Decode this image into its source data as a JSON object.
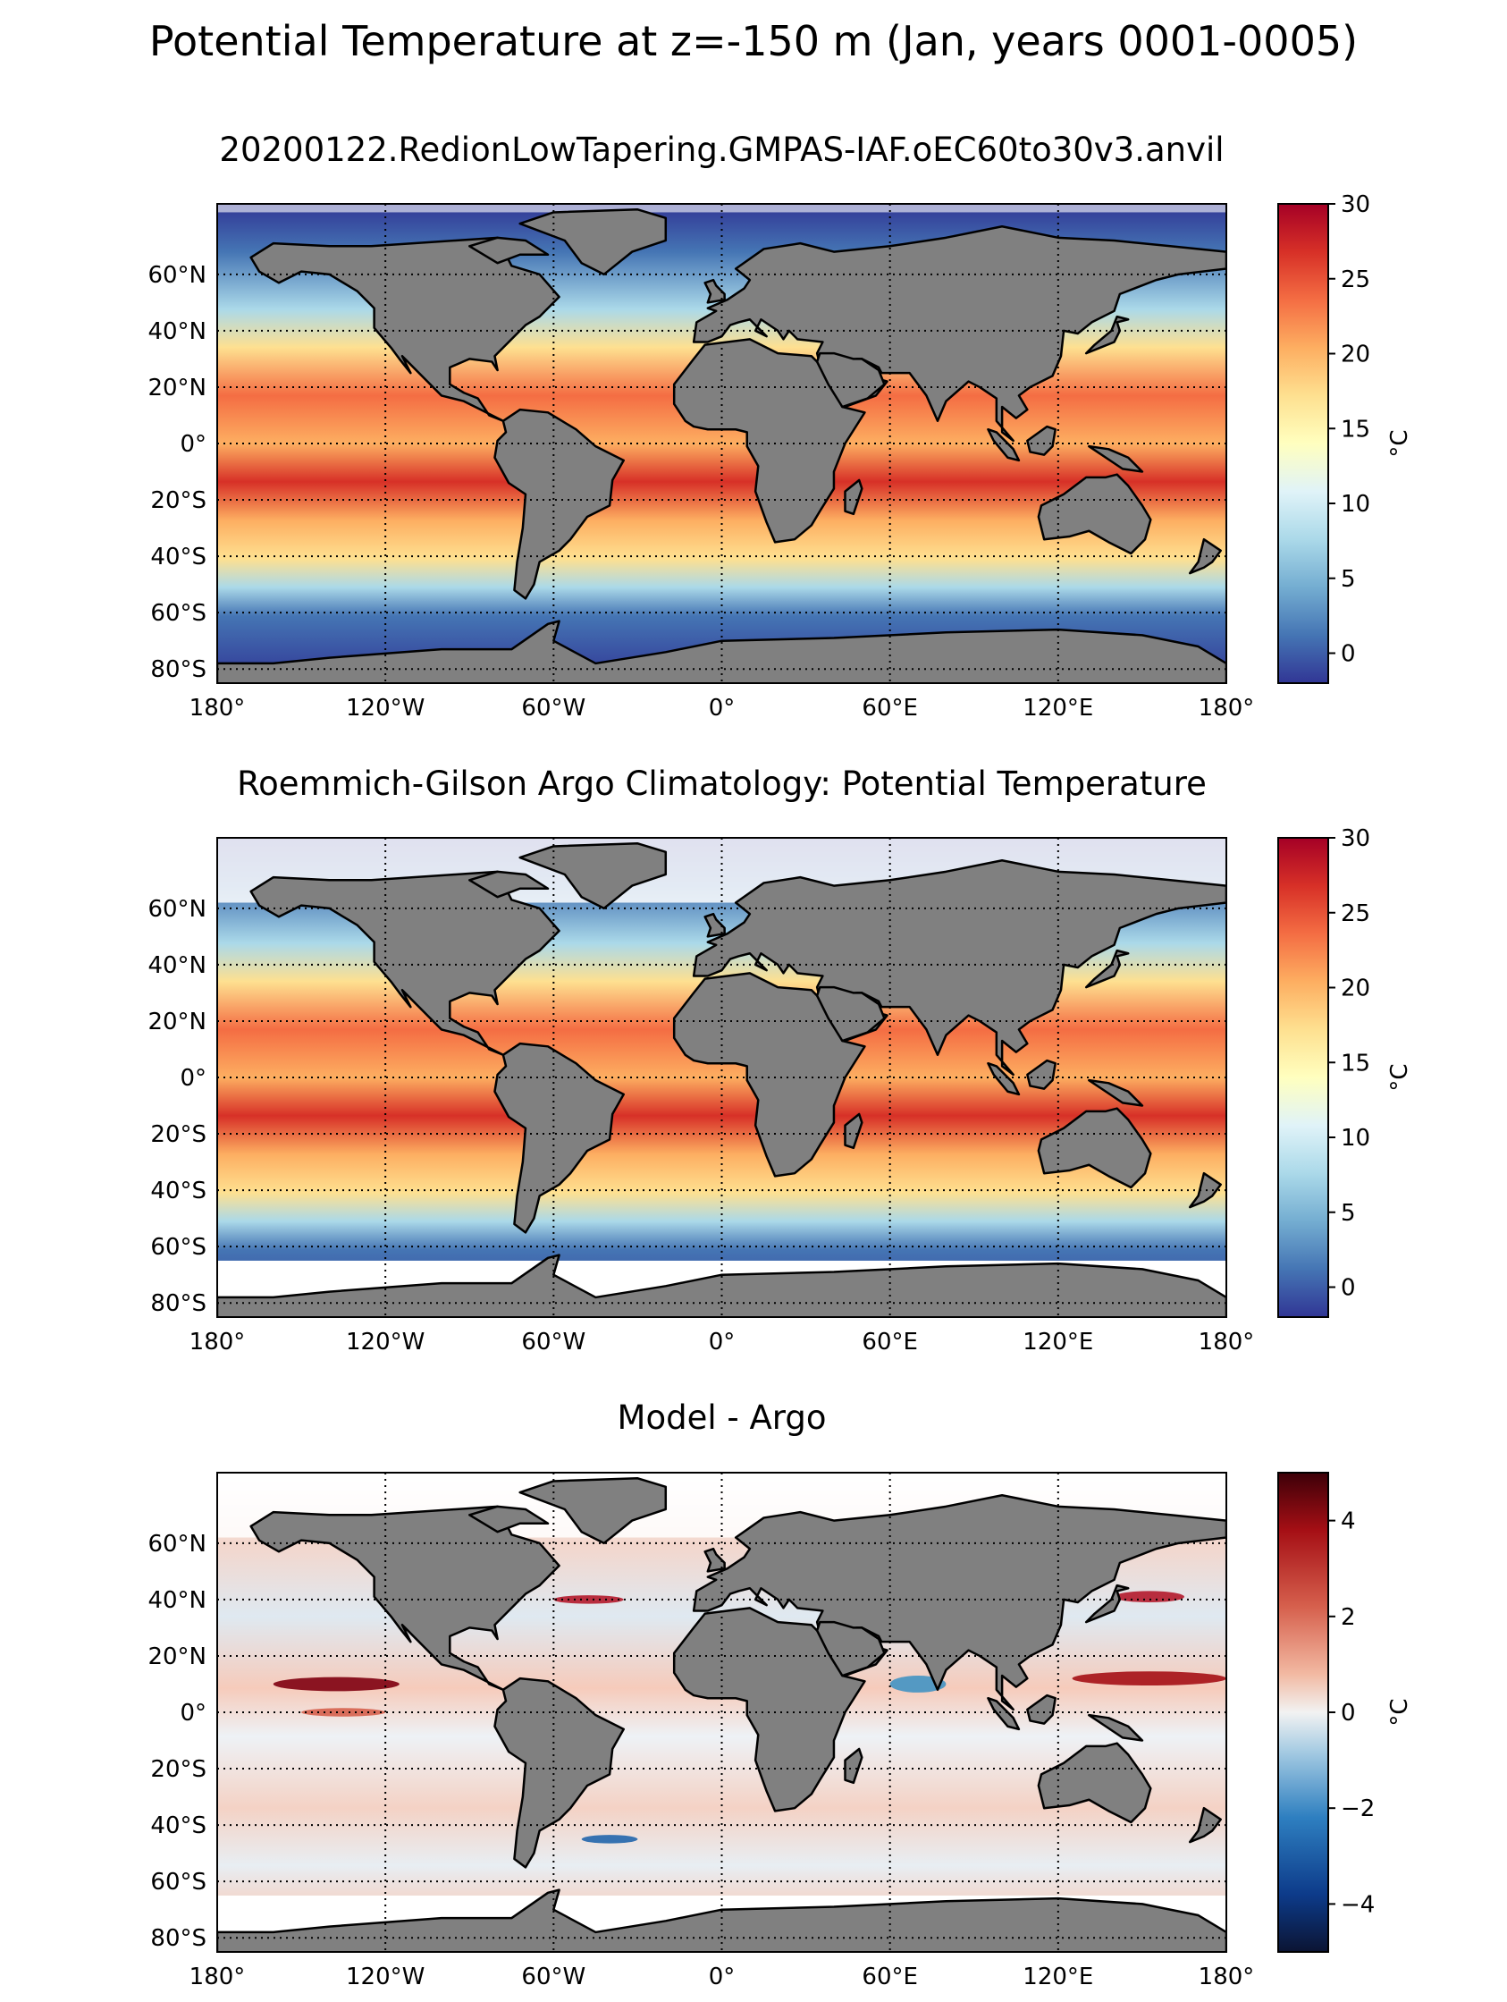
{
  "figure_title": "Potential Temperature at z=-150 m (Jan, years 0001-0005)",
  "chart_data": [
    {
      "type": "heatmap",
      "title": "20200122.RedionLowTapering.GMPAS-IAF.oEC60to30v3.anvil",
      "xlabel": "",
      "ylabel": "",
      "xlim": [
        -180,
        180
      ],
      "ylim": [
        -85,
        85
      ],
      "grid": true,
      "x_ticks": [
        -180,
        -120,
        -60,
        0,
        60,
        120,
        180
      ],
      "x_tick_labels": [
        "180°",
        "120°W",
        "60°W",
        "0°",
        "60°E",
        "120°E",
        "180°"
      ],
      "y_ticks": [
        60,
        40,
        20,
        0,
        -20,
        -40,
        -60,
        -80
      ],
      "y_tick_labels": [
        "60°N",
        "40°N",
        "20°N",
        "0°",
        "20°S",
        "40°S",
        "60°S",
        "80°S"
      ],
      "colorbar": {
        "label": "°C",
        "range": [
          -2,
          30
        ],
        "ticks": [
          0,
          5,
          10,
          15,
          20,
          25,
          30
        ],
        "tick_labels": [
          "0",
          "5",
          "10",
          "15",
          "20",
          "25",
          "30"
        ],
        "colormap": "RdYlBu_r"
      }
    },
    {
      "type": "heatmap",
      "title": "Roemmich-Gilson Argo Climatology: Potential Temperature",
      "xlabel": "",
      "ylabel": "",
      "xlim": [
        -180,
        180
      ],
      "ylim": [
        -85,
        85
      ],
      "grid": true,
      "x_ticks": [
        -180,
        -120,
        -60,
        0,
        60,
        120,
        180
      ],
      "x_tick_labels": [
        "180°",
        "120°W",
        "60°W",
        "0°",
        "60°E",
        "120°E",
        "180°"
      ],
      "y_ticks": [
        60,
        40,
        20,
        0,
        -20,
        -40,
        -60,
        -80
      ],
      "y_tick_labels": [
        "60°N",
        "40°N",
        "20°N",
        "0°",
        "20°S",
        "40°S",
        "60°S",
        "80°S"
      ],
      "colorbar": {
        "label": "°C",
        "range": [
          -2,
          30
        ],
        "ticks": [
          0,
          5,
          10,
          15,
          20,
          25,
          30
        ],
        "tick_labels": [
          "0",
          "5",
          "10",
          "15",
          "20",
          "25",
          "30"
        ],
        "colormap": "RdYlBu_r"
      }
    },
    {
      "type": "heatmap",
      "title": "Model - Argo",
      "xlabel": "",
      "ylabel": "",
      "xlim": [
        -180,
        180
      ],
      "ylim": [
        -85,
        85
      ],
      "grid": true,
      "x_ticks": [
        -180,
        -120,
        -60,
        0,
        60,
        120,
        180
      ],
      "x_tick_labels": [
        "180°",
        "120°W",
        "60°W",
        "0°",
        "60°E",
        "120°E",
        "180°"
      ],
      "y_ticks": [
        60,
        40,
        20,
        0,
        -20,
        -40,
        -60,
        -80
      ],
      "y_tick_labels": [
        "60°N",
        "40°N",
        "20°N",
        "0°",
        "20°S",
        "40°S",
        "60°S",
        "80°S"
      ],
      "colorbar": {
        "label": "°C",
        "range": [
          -5,
          5
        ],
        "ticks": [
          -4,
          -2,
          0,
          2,
          4
        ],
        "tick_labels": [
          "−4",
          "−2",
          "0",
          "2",
          "4"
        ],
        "colormap": "RdBu_r"
      }
    }
  ]
}
